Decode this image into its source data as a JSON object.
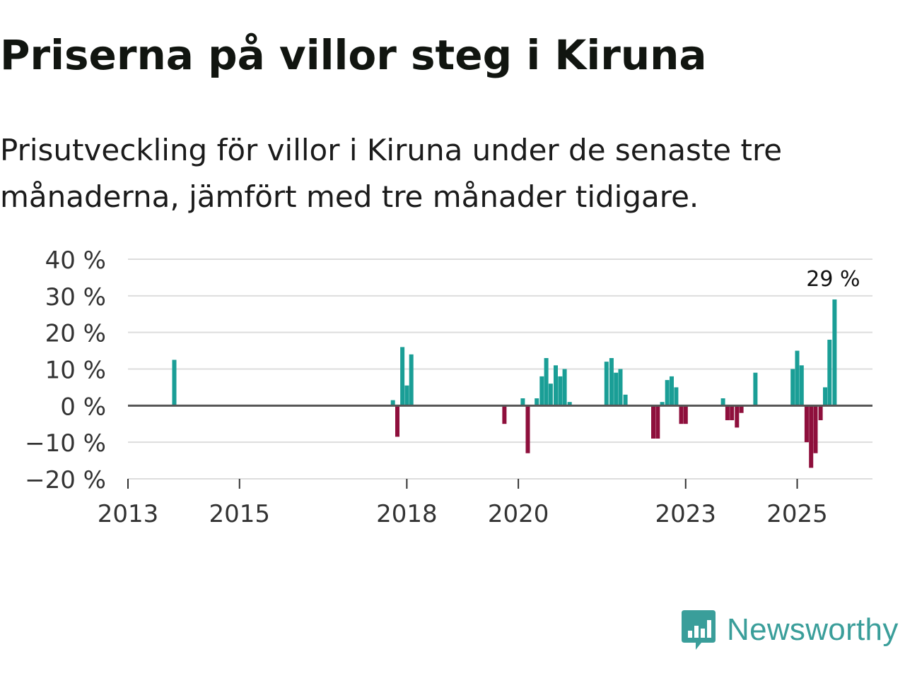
{
  "header": {
    "title": "Priserna på villor steg i Kiruna",
    "subtitle": "Prisutveckling för villor i Kiruna under de senaste tre månaderna, jämfört med tre månader tidigare."
  },
  "chart_data": {
    "type": "bar",
    "title": "Priserna på villor steg i Kiruna",
    "xlabel": "",
    "ylabel": "",
    "ylim": [
      -20,
      40
    ],
    "xlim": [
      2013.0,
      2026.35
    ],
    "grid": true,
    "y_ticks": [
      40,
      30,
      20,
      10,
      0,
      -10,
      -20
    ],
    "y_tick_labels": [
      "40 %",
      "30 %",
      "20 %",
      "10 %",
      "0 %",
      "−10 %",
      "−20 %"
    ],
    "x_ticks": [
      2013,
      2015,
      2018,
      2020,
      2023,
      2025
    ],
    "x_tick_labels": [
      "2013",
      "2015",
      "2018",
      "2020",
      "2023",
      "2025"
    ],
    "annotation": {
      "x": 2025.67,
      "value": 29,
      "label": "29 %"
    },
    "colors": {
      "positive": "#1a9e96",
      "negative": "#8e0f3c",
      "zero_line": "#555555",
      "grid": "#dddddd"
    },
    "x": [
      2013.83,
      2017.75,
      2017.83,
      2017.92,
      2018.0,
      2018.08,
      2019.75,
      2020.08,
      2020.17,
      2020.33,
      2020.42,
      2020.5,
      2020.58,
      2020.67,
      2020.75,
      2020.83,
      2020.92,
      2021.58,
      2021.67,
      2021.75,
      2021.83,
      2021.92,
      2022.42,
      2022.5,
      2022.58,
      2022.67,
      2022.75,
      2022.83,
      2022.92,
      2023.0,
      2023.67,
      2023.75,
      2023.83,
      2023.92,
      2024.0,
      2024.25,
      2024.92,
      2025.0,
      2025.08,
      2025.17,
      2025.25,
      2025.33,
      2025.42,
      2025.5,
      2025.58,
      2025.67
    ],
    "values": [
      12.5,
      1.5,
      -8.5,
      16,
      5.5,
      14,
      -5,
      2,
      -13,
      2,
      8,
      13,
      6,
      11,
      8,
      10,
      1,
      12,
      13,
      9,
      10,
      3,
      -9,
      -9,
      1,
      7,
      8,
      5,
      -5,
      -5,
      2,
      -4,
      -4,
      -6,
      -2,
      9,
      10,
      15,
      11,
      -10,
      -17,
      -13,
      -4,
      5,
      18,
      29
    ]
  },
  "logo": {
    "text": "Newsworthy",
    "icon": "newsworthy-bar-chart-logo-icon"
  }
}
